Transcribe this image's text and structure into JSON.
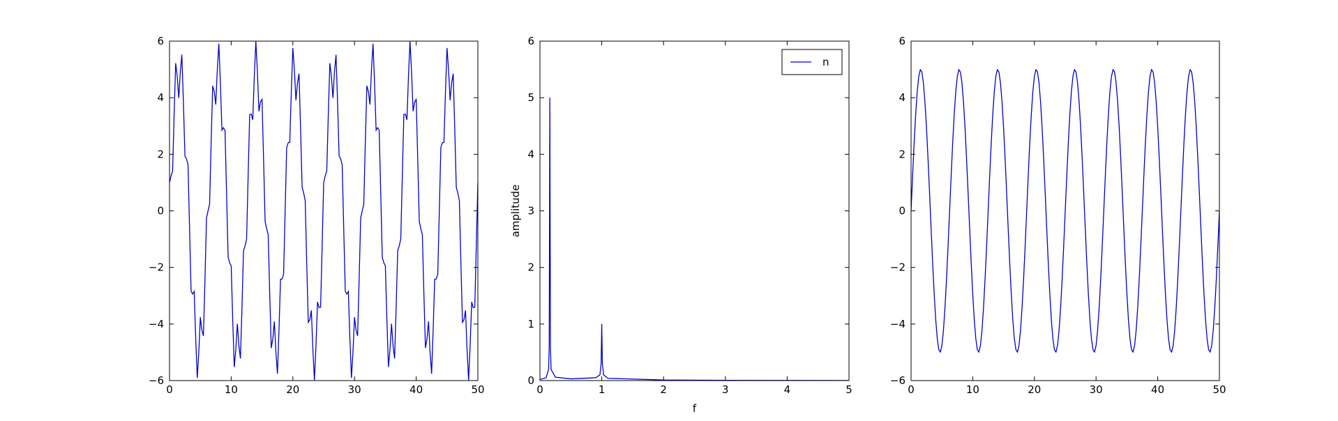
{
  "chart_data": [
    {
      "type": "line",
      "color": "#0000cc",
      "x": [
        0,
        0.25,
        0.5,
        0.75,
        1,
        1.25,
        1.5,
        1.75,
        2,
        2.25,
        2.5,
        2.75,
        3,
        3.25,
        3.5,
        3.75,
        4,
        4.25,
        4.5,
        4.75,
        5,
        5.25,
        5.5,
        5.75,
        6,
        6.25,
        6.5,
        6.75,
        7,
        7.25,
        7.5,
        7.75,
        8,
        8.25,
        8.5,
        8.75,
        9,
        9.25,
        9.5,
        9.75,
        10,
        10.25,
        10.5,
        10.75,
        11,
        11.25,
        11.5,
        11.75,
        12,
        12.25,
        12.5,
        12.75,
        13,
        13.25,
        13.5,
        13.75,
        14,
        14.25,
        14.5,
        14.75,
        15,
        15.25,
        15.5,
        15.75,
        16,
        16.25,
        16.5,
        16.75,
        17,
        17.25,
        17.5,
        17.75,
        18,
        18.25,
        18.5,
        18.75,
        19,
        19.25,
        19.5,
        19.75,
        20,
        20.25,
        20.5,
        20.75,
        21,
        21.25,
        21.5,
        21.75,
        22,
        22.25,
        22.5,
        22.75,
        23,
        23.25,
        23.5,
        23.75,
        24,
        24.25,
        24.5,
        24.75,
        25,
        25.25,
        25.5,
        25.75,
        26,
        26.25,
        26.5,
        26.75,
        27,
        27.25,
        27.5,
        27.75,
        28,
        28.25,
        28.5,
        28.75,
        29,
        29.25,
        29.5,
        29.75,
        30,
        30.25,
        30.5,
        30.75,
        31,
        31.25,
        31.5,
        31.75,
        32,
        32.25,
        32.5,
        32.75,
        33,
        33.25,
        33.5,
        33.75,
        34,
        34.25,
        34.5,
        34.75,
        35,
        35.25,
        35.5,
        35.75,
        36,
        36.25,
        36.5,
        36.75,
        37,
        37.25,
        37.5,
        37.75,
        38,
        38.25,
        38.5,
        38.75,
        39,
        39.25,
        39.5,
        39.75,
        40,
        40.25,
        40.5,
        40.75,
        41,
        41.25,
        41.5,
        41.75,
        42,
        42.25,
        42.5,
        42.75,
        43,
        43.25,
        43.5,
        43.75,
        44,
        44.25,
        44.5,
        44.75,
        45,
        45.25,
        45.5,
        45.75,
        46,
        46.25,
        46.5,
        46.75,
        47,
        47.25,
        47.5,
        47.75,
        48,
        48.25,
        48.5,
        48.75,
        49,
        49.25,
        49.5,
        49.75,
        50
      ],
      "values": [
        1,
        1.24,
        1.41,
        3.42,
        5.22,
        4.76,
        3.99,
        4.91,
        5.52,
        3.85,
        1.94,
        1.84,
        1.63,
        -0.63,
        -2.84,
        -2.94,
        -2.85,
        -4.52,
        -5.91,
        -4.99,
        -3.76,
        -4.22,
        -4.42,
        -2.41,
        -0.24,
        0,
        0.24,
        2.41,
        4.42,
        4.22,
        3.76,
        4.99,
        5.91,
        4.52,
        2.85,
        2.94,
        2.84,
        0.63,
        -1.63,
        -1.84,
        -1.94,
        -3.85,
        -5.52,
        -4.91,
        -3.99,
        -4.76,
        -5.22,
        -3.42,
        -1.41,
        -1.24,
        -1,
        1.24,
        3.41,
        3.42,
        3.22,
        4.76,
        5.99,
        4.91,
        3.52,
        3.85,
        3.94,
        1.84,
        -0.37,
        -0.63,
        -0.84,
        -2.94,
        -4.85,
        -4.52,
        -3.91,
        -4.99,
        -5.76,
        -4.22,
        -2.42,
        -2.41,
        -2.24,
        0,
        2.24,
        2.41,
        2.42,
        4.22,
        5.76,
        4.99,
        3.91,
        4.52,
        4.85,
        2.94,
        0.84,
        0.63,
        0.37,
        -1.84,
        -3.94,
        -3.85,
        -3.52,
        -4.91,
        -5.99,
        -4.76,
        -3.22,
        -3.42,
        -3.41,
        -1.24,
        1,
        1.24,
        1.41,
        3.42,
        5.22,
        4.76,
        3.99,
        4.91,
        5.52,
        3.85,
        1.94,
        1.84,
        1.63,
        -0.63,
        -2.84,
        -2.94,
        -2.85,
        -4.52,
        -5.91,
        -4.99,
        -3.76,
        -4.22,
        -4.42,
        -2.41,
        -0.24,
        0,
        0.24,
        2.41,
        4.42,
        4.22,
        3.76,
        4.99,
        5.91,
        4.52,
        2.85,
        2.94,
        2.84,
        0.63,
        -1.63,
        -1.84,
        -1.94,
        -3.85,
        -5.52,
        -4.91,
        -3.99,
        -4.76,
        -5.22,
        -3.42,
        -1.41,
        -1.24,
        -1,
        1.24,
        3.41,
        3.42,
        3.22,
        4.76,
        5.99,
        4.91,
        3.52,
        3.85,
        3.94,
        1.84,
        -0.37,
        -0.63,
        -0.84,
        -2.94,
        -4.85,
        -4.52,
        -3.91,
        -4.99,
        -5.76,
        -4.22,
        -2.42,
        -2.41,
        -2.24,
        0,
        2.24,
        2.41,
        2.42,
        4.22,
        5.76,
        4.99,
        3.91,
        4.52,
        4.85,
        2.94,
        0.84,
        0.63,
        0.37,
        -1.84,
        -3.94,
        -3.85,
        -3.52,
        -4.91,
        -5.99,
        -4.76,
        -3.22,
        -3.42,
        -3.41,
        -1.24,
        1
      ],
      "xlim": [
        0,
        50
      ],
      "xticks": [
        0,
        10,
        20,
        30,
        40,
        50
      ],
      "ylim": [
        -6,
        6
      ],
      "yticks": [
        {
          "value": -6,
          "label": "−6"
        },
        {
          "value": -4,
          "label": "−4"
        },
        {
          "value": -2,
          "label": "−2"
        },
        0,
        2,
        4,
        6
      ]
    },
    {
      "type": "line",
      "x_label": "f",
      "y_label": "amplitude",
      "legend": "upper right",
      "x": [
        0,
        0.1,
        0.14,
        0.15,
        0.16,
        0.17,
        0.18,
        0.25,
        0.5,
        0.9,
        0.97,
        0.99,
        1,
        1.01,
        1.03,
        1.1,
        2,
        3,
        4,
        5
      ],
      "series": [
        {
          "name": "n",
          "color": "#0000cc",
          "values": [
            0.02,
            0.05,
            0.2,
            0.6,
            5,
            0.6,
            0.2,
            0.06,
            0.03,
            0.05,
            0.1,
            0.3,
            1,
            0.3,
            0.1,
            0.04,
            0.01,
            0.005,
            0.003,
            0.002
          ]
        }
      ],
      "xlim": [
        0,
        5
      ],
      "xticks": [
        0,
        1,
        2,
        3,
        4,
        5
      ],
      "ylim": [
        0,
        6
      ],
      "yticks": [
        0,
        1,
        2,
        3,
        4,
        5,
        6
      ]
    },
    {
      "type": "line",
      "color": "#0000cc",
      "x": [
        0,
        0.25,
        0.5,
        0.75,
        1,
        1.25,
        1.5,
        1.75,
        2,
        2.25,
        2.5,
        2.75,
        3,
        3.25,
        3.5,
        3.75,
        4,
        4.25,
        4.5,
        4.75,
        5,
        5.25,
        5.5,
        5.75,
        6,
        6.25,
        6.5,
        6.75,
        7,
        7.25,
        7.5,
        7.75,
        8,
        8.25,
        8.5,
        8.75,
        9,
        9.25,
        9.5,
        9.75,
        10,
        10.25,
        10.5,
        10.75,
        11,
        11.25,
        11.5,
        11.75,
        12,
        12.25,
        12.5,
        12.75,
        13,
        13.25,
        13.5,
        13.75,
        14,
        14.25,
        14.5,
        14.75,
        15,
        15.25,
        15.5,
        15.75,
        16,
        16.25,
        16.5,
        16.75,
        17,
        17.25,
        17.5,
        17.75,
        18,
        18.25,
        18.5,
        18.75,
        19,
        19.25,
        19.5,
        19.75,
        20,
        20.25,
        20.5,
        20.75,
        21,
        21.25,
        21.5,
        21.75,
        22,
        22.25,
        22.5,
        22.75,
        23,
        23.25,
        23.5,
        23.75,
        24,
        24.25,
        24.5,
        24.75,
        25,
        25.25,
        25.5,
        25.75,
        26,
        26.25,
        26.5,
        26.75,
        27,
        27.25,
        27.5,
        27.75,
        28,
        28.25,
        28.5,
        28.75,
        29,
        29.25,
        29.5,
        29.75,
        30,
        30.25,
        30.5,
        30.75,
        31,
        31.25,
        31.5,
        31.75,
        32,
        32.25,
        32.5,
        32.75,
        33,
        33.25,
        33.5,
        33.75,
        34,
        34.25,
        34.5,
        34.75,
        35,
        35.25,
        35.5,
        35.75,
        36,
        36.25,
        36.5,
        36.75,
        37,
        37.25,
        37.5,
        37.75,
        38,
        38.25,
        38.5,
        38.75,
        39,
        39.25,
        39.5,
        39.75,
        40,
        40.25,
        40.5,
        40.75,
        41,
        41.25,
        41.5,
        41.75,
        42,
        42.25,
        42.5,
        42.75,
        43,
        43.25,
        43.5,
        43.75,
        44,
        44.25,
        44.5,
        44.75,
        45,
        45.25,
        45.5,
        45.75,
        46,
        46.25,
        46.5,
        46.75,
        47,
        47.25,
        47.5,
        47.75,
        48,
        48.25,
        48.5,
        48.75,
        49,
        49.25,
        49.5,
        49.75,
        50
      ],
      "values": [
        0,
        1.24,
        2.41,
        3.42,
        4.22,
        4.76,
        4.99,
        4.91,
        4.52,
        3.85,
        2.94,
        1.84,
        0.63,
        -0.63,
        -1.84,
        -2.94,
        -3.85,
        -4.52,
        -4.91,
        -4.99,
        -4.76,
        -4.22,
        -3.42,
        -2.41,
        -1.24,
        0,
        1.24,
        2.41,
        3.42,
        4.22,
        4.76,
        4.99,
        4.91,
        4.52,
        3.85,
        2.94,
        1.84,
        0.63,
        -0.63,
        -1.84,
        -2.94,
        -3.85,
        -4.52,
        -4.91,
        -4.99,
        -4.76,
        -4.22,
        -3.42,
        -2.41,
        -1.24,
        0,
        1.24,
        2.41,
        3.42,
        4.22,
        4.76,
        4.99,
        4.91,
        4.52,
        3.85,
        2.94,
        1.84,
        0.63,
        -0.63,
        -1.84,
        -2.94,
        -3.85,
        -4.52,
        -4.91,
        -4.99,
        -4.76,
        -4.22,
        -3.42,
        -2.41,
        -1.24,
        0,
        1.24,
        2.41,
        3.42,
        4.22,
        4.76,
        4.99,
        4.91,
        4.52,
        3.85,
        2.94,
        1.84,
        0.63,
        -0.63,
        -1.84,
        -2.94,
        -3.85,
        -4.52,
        -4.91,
        -4.99,
        -4.76,
        -4.22,
        -3.42,
        -2.41,
        -1.24,
        0,
        1.24,
        2.41,
        3.42,
        4.22,
        4.76,
        4.99,
        4.91,
        4.52,
        3.85,
        2.94,
        1.84,
        0.63,
        -0.63,
        -1.84,
        -2.94,
        -3.85,
        -4.52,
        -4.91,
        -4.99,
        -4.76,
        -4.22,
        -3.42,
        -2.41,
        -1.24,
        0,
        1.24,
        2.41,
        3.42,
        4.22,
        4.76,
        4.99,
        4.91,
        4.52,
        3.85,
        2.94,
        1.84,
        0.63,
        -0.63,
        -1.84,
        -2.94,
        -3.85,
        -4.52,
        -4.91,
        -4.99,
        -4.76,
        -4.22,
        -3.42,
        -2.41,
        -1.24,
        0,
        1.24,
        2.41,
        3.42,
        4.22,
        4.76,
        4.99,
        4.91,
        4.52,
        3.85,
        2.94,
        1.84,
        0.63,
        -0.63,
        -1.84,
        -2.94,
        -3.85,
        -4.52,
        -4.91,
        -4.99,
        -4.76,
        -4.22,
        -3.42,
        -2.41,
        -1.24,
        0,
        1.24,
        2.41,
        3.42,
        4.22,
        4.76,
        4.99,
        4.91,
        4.52,
        3.85,
        2.94,
        1.84,
        0.63,
        -0.63,
        -1.84,
        -2.94,
        -3.85,
        -4.52,
        -4.91,
        -4.99,
        -4.76,
        -4.22,
        -3.42,
        -2.41,
        -1.24,
        0
      ],
      "xlim": [
        0,
        50
      ],
      "xticks": [
        0,
        10,
        20,
        30,
        40,
        50
      ],
      "ylim": [
        -6,
        6
      ],
      "yticks": [
        {
          "value": -6,
          "label": "−6"
        },
        {
          "value": -4,
          "label": "−4"
        },
        {
          "value": -2,
          "label": "−2"
        },
        0,
        2,
        4,
        6
      ]
    }
  ]
}
